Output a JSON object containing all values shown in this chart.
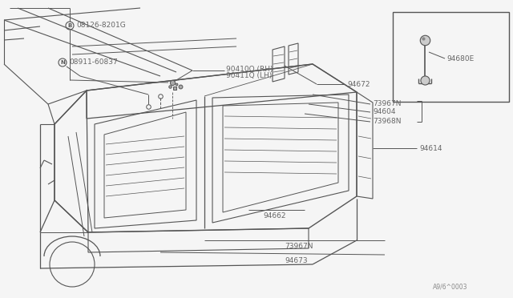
{
  "bg_color": "#f5f5f5",
  "line_color": "#555555",
  "text_color": "#555555",
  "label_color": "#666666",
  "labels": {
    "B_label": "08126-8201G",
    "N_label": "08911-60837",
    "part1": "90410Q (RH)",
    "part1b": "90411Q (LH)",
    "part2": "94672",
    "part3": "73967N",
    "part4": "94604",
    "part5": "73968N",
    "part6": "94614",
    "part7": "94662",
    "part8": "73967N",
    "part9": "94673",
    "part10": "94680E",
    "watermark": "A9/6^0003"
  },
  "fig_width": 6.4,
  "fig_height": 3.72,
  "dpi": 100
}
